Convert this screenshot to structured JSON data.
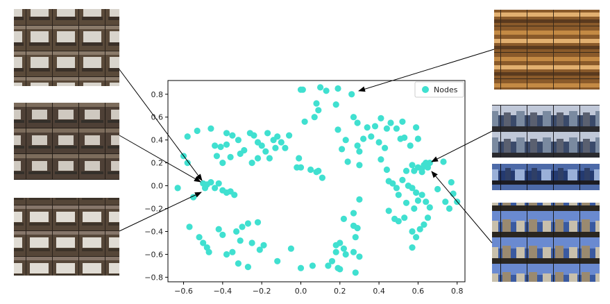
{
  "chart_data": {
    "type": "scatter",
    "title": "",
    "xlabel": "",
    "ylabel": "",
    "xlim": [
      -0.68,
      0.84
    ],
    "ylim": [
      -0.84,
      0.92
    ],
    "xticks": [
      -0.6,
      -0.4,
      -0.2,
      0.0,
      0.2,
      0.4,
      0.6,
      0.8
    ],
    "xtick_labels": [
      "−0.6",
      "−0.4",
      "−0.2",
      "0.0",
      "0.2",
      "0.4",
      "0.6",
      "0.8"
    ],
    "yticks": [
      0.8,
      0.6,
      0.4,
      0.2,
      0.0,
      -0.2,
      -0.4,
      -0.6,
      -0.8
    ],
    "ytick_labels": [
      "0.8",
      "0.6",
      "0.4",
      "0.2",
      "0.0",
      "−0.2",
      "−0.4",
      "−0.6",
      "−0.8"
    ],
    "grid": false,
    "legend": {
      "placement": "top-right",
      "label": "Nodes"
    },
    "series": [
      {
        "name": "Nodes",
        "color": "#40e0d0",
        "points": [
          [
            -0.6,
            0.26
          ],
          [
            -0.58,
            0.2
          ],
          [
            -0.58,
            0.43
          ],
          [
            -0.53,
            0.48
          ],
          [
            -0.63,
            -0.02
          ],
          [
            -0.55,
            -0.1
          ],
          [
            -0.57,
            -0.36
          ],
          [
            -0.52,
            -0.45
          ],
          [
            -0.5,
            -0.5
          ],
          [
            -0.48,
            -0.54
          ],
          [
            -0.47,
            -0.58
          ],
          [
            -0.38,
            -0.6
          ],
          [
            -0.35,
            -0.58
          ],
          [
            -0.42,
            -0.38
          ],
          [
            -0.4,
            -0.43
          ],
          [
            -0.33,
            -0.4
          ],
          [
            -0.3,
            -0.36
          ],
          [
            -0.27,
            -0.33
          ],
          [
            -0.22,
            -0.32
          ],
          [
            -0.31,
            -0.48
          ],
          [
            -0.25,
            -0.5
          ],
          [
            -0.21,
            -0.56
          ],
          [
            -0.19,
            -0.52
          ],
          [
            -0.32,
            -0.68
          ],
          [
            -0.27,
            -0.71
          ],
          [
            -0.12,
            -0.66
          ],
          [
            -0.05,
            -0.55
          ],
          [
            0.0,
            -0.72
          ],
          [
            0.06,
            -0.7
          ],
          [
            -0.5,
            0.02
          ],
          [
            -0.49,
            -0.02
          ],
          [
            -0.48,
            0.01
          ],
          [
            -0.46,
            0.03
          ],
          [
            -0.44,
            -0.02
          ],
          [
            -0.42,
            0.02
          ],
          [
            -0.4,
            -0.04
          ],
          [
            -0.38,
            -0.06
          ],
          [
            -0.36,
            -0.05
          ],
          [
            -0.34,
            -0.08
          ],
          [
            -0.46,
            0.5
          ],
          [
            -0.44,
            0.35
          ],
          [
            -0.41,
            0.34
          ],
          [
            -0.38,
            0.36
          ],
          [
            -0.43,
            0.26
          ],
          [
            -0.4,
            0.2
          ],
          [
            -0.36,
            0.25
          ],
          [
            -0.38,
            0.46
          ],
          [
            -0.35,
            0.44
          ],
          [
            -0.32,
            0.4
          ],
          [
            -0.31,
            0.28
          ],
          [
            -0.29,
            0.31
          ],
          [
            -0.26,
            0.46
          ],
          [
            -0.24,
            0.44
          ],
          [
            -0.22,
            0.38
          ],
          [
            -0.2,
            0.35
          ],
          [
            -0.18,
            0.3
          ],
          [
            -0.16,
            0.24
          ],
          [
            -0.25,
            0.2
          ],
          [
            -0.22,
            0.24
          ],
          [
            -0.17,
            0.46
          ],
          [
            -0.14,
            0.4
          ],
          [
            -0.13,
            0.33
          ],
          [
            -0.12,
            0.43
          ],
          [
            -0.1,
            0.38
          ],
          [
            -0.08,
            0.33
          ],
          [
            -0.06,
            0.44
          ],
          [
            -0.02,
            0.16
          ],
          [
            0.0,
            0.16
          ],
          [
            -0.01,
            0.24
          ],
          [
            0.0,
            0.84
          ],
          [
            0.01,
            0.84
          ],
          [
            0.02,
            0.56
          ],
          [
            0.07,
            0.6
          ],
          [
            0.08,
            0.72
          ],
          [
            0.09,
            0.66
          ],
          [
            0.1,
            0.86
          ],
          [
            0.05,
            0.14
          ],
          [
            0.08,
            0.12
          ],
          [
            0.09,
            0.13
          ],
          [
            0.11,
            0.07
          ],
          [
            0.13,
            0.83
          ],
          [
            0.18,
            0.71
          ],
          [
            0.19,
            0.85
          ],
          [
            0.19,
            0.49
          ],
          [
            0.21,
            0.32
          ],
          [
            0.23,
            0.4
          ],
          [
            0.24,
            0.21
          ],
          [
            0.26,
            0.8
          ],
          [
            0.27,
            0.6
          ],
          [
            0.29,
            0.55
          ],
          [
            0.29,
            0.35
          ],
          [
            0.3,
            0.3
          ],
          [
            0.32,
            0.41
          ],
          [
            0.3,
            0.18
          ],
          [
            0.3,
            -0.12
          ],
          [
            0.27,
            -0.24
          ],
          [
            0.22,
            -0.29
          ],
          [
            0.27,
            -0.35
          ],
          [
            0.29,
            -0.37
          ],
          [
            0.28,
            -0.45
          ],
          [
            0.2,
            -0.5
          ],
          [
            0.18,
            -0.52
          ],
          [
            0.18,
            -0.58
          ],
          [
            0.22,
            -0.55
          ],
          [
            0.23,
            -0.6
          ],
          [
            0.16,
            -0.66
          ],
          [
            0.14,
            -0.7
          ],
          [
            0.19,
            -0.72
          ],
          [
            0.2,
            -0.73
          ],
          [
            0.27,
            -0.58
          ],
          [
            0.3,
            -0.62
          ],
          [
            0.28,
            -0.76
          ],
          [
            0.34,
            0.51
          ],
          [
            0.36,
            0.43
          ],
          [
            0.38,
            0.52
          ],
          [
            0.41,
            0.59
          ],
          [
            0.4,
            0.38
          ],
          [
            0.43,
            0.33
          ],
          [
            0.41,
            0.23
          ],
          [
            0.44,
            0.5
          ],
          [
            0.46,
            0.55
          ],
          [
            0.49,
            0.5
          ],
          [
            0.52,
            0.56
          ],
          [
            0.51,
            0.41
          ],
          [
            0.53,
            0.42
          ],
          [
            0.56,
            0.35
          ],
          [
            0.59,
            0.51
          ],
          [
            0.6,
            0.41
          ],
          [
            0.57,
            0.18
          ],
          [
            0.58,
            0.13
          ],
          [
            0.6,
            0.16
          ],
          [
            0.62,
            0.12
          ],
          [
            0.63,
            0.18
          ],
          [
            0.64,
            0.2
          ],
          [
            0.62,
            0.15
          ],
          [
            0.65,
            0.16
          ],
          [
            0.66,
            0.2
          ],
          [
            0.44,
            0.14
          ],
          [
            0.45,
            0.04
          ],
          [
            0.47,
            0.02
          ],
          [
            0.49,
            -0.02
          ],
          [
            0.5,
            -0.08
          ],
          [
            0.52,
            0.05
          ],
          [
            0.54,
            0.13
          ],
          [
            0.55,
            0.0
          ],
          [
            0.54,
            -0.15
          ],
          [
            0.57,
            -0.02
          ],
          [
            0.59,
            -0.06
          ],
          [
            0.6,
            -0.13
          ],
          [
            0.58,
            -0.2
          ],
          [
            0.62,
            -0.08
          ],
          [
            0.64,
            -0.14
          ],
          [
            0.66,
            -0.19
          ],
          [
            0.7,
            -0.03
          ],
          [
            0.73,
            0.21
          ],
          [
            0.74,
            -0.14
          ],
          [
            0.77,
            0.03
          ],
          [
            0.78,
            -0.07
          ],
          [
            0.76,
            -0.2
          ],
          [
            0.8,
            -0.14
          ],
          [
            0.45,
            -0.22
          ],
          [
            0.48,
            -0.29
          ],
          [
            0.5,
            -0.31
          ],
          [
            0.53,
            -0.28
          ],
          [
            0.57,
            -0.4
          ],
          [
            0.59,
            -0.45
          ],
          [
            0.61,
            -0.38
          ],
          [
            0.63,
            -0.34
          ],
          [
            0.65,
            -0.28
          ],
          [
            0.57,
            -0.54
          ]
        ]
      }
    ]
  },
  "thumbnails": [
    {
      "id": "office-laptop-1",
      "colors": [
        "#5a4a3a",
        "#8a7a6a",
        "#3a3028",
        "#d8d4cc",
        "#7a6656"
      ]
    },
    {
      "id": "office-laptop-2",
      "colors": [
        "#4e4036",
        "#7c6c5c",
        "#34302a",
        "#cfc9c0",
        "#6a5a4c"
      ]
    },
    {
      "id": "office-laptop-3",
      "colors": [
        "#554638",
        "#86766a",
        "#3c3329",
        "#e0dcd4",
        "#706050"
      ]
    },
    {
      "id": "bakery-shelves",
      "colors": [
        "#8a5a2a",
        "#c48a44",
        "#3a2a1a",
        "#e2b070",
        "#5a3a1e"
      ]
    },
    {
      "id": "city-street-1",
      "colors": [
        "#3a4a6a",
        "#7a8aa0",
        "#2a2a2e",
        "#c0c8d8",
        "#5a6070"
      ]
    },
    {
      "id": "city-street-2",
      "colors": [
        "#243a70",
        "#4d6aa8",
        "#1c1c22",
        "#9ab0d8",
        "#2f3f66"
      ]
    },
    {
      "id": "city-street-3",
      "colors": [
        "#3a5aa0",
        "#9a8a70",
        "#2a2620",
        "#c8c0ac",
        "#6a5a48"
      ]
    }
  ]
}
